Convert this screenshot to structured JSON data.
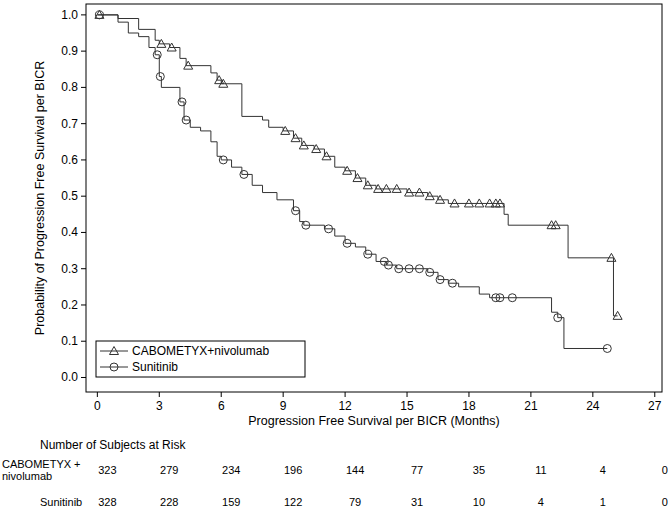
{
  "chart_data": {
    "type": "line",
    "x_label": "Progression Free Survival per BICR (Months)",
    "y_label": "Probability of Progression Free Survival per BICR",
    "xlim": [
      -0.55,
      27.35
    ],
    "ylim": [
      -0.04,
      1.03
    ],
    "xticks": [
      0,
      3,
      6,
      9,
      12,
      15,
      18,
      21,
      24,
      27
    ],
    "yticks": [
      {
        "value": 0,
        "label": "0.0"
      },
      0.1,
      0.2,
      0.3,
      0.4,
      0.5,
      0.6,
      0.7,
      0.8,
      0.9,
      {
        "value": 1,
        "label": "1.0"
      }
    ],
    "grid": false,
    "legend": "lower left",
    "series": [
      {
        "name": "CABOMETYX+nivolumab",
        "color": "#333333",
        "marker": "triangle",
        "line_style": "step",
        "x": [
          0,
          1,
          2,
          2.8,
          3,
          3.5,
          4,
          4.3,
          5.5,
          5.8,
          6,
          7,
          8,
          8.3,
          9,
          9.5,
          9.9,
          10.5,
          11,
          11.5,
          12,
          12.5,
          13,
          13.5,
          15,
          16,
          16.5,
          17,
          19.7,
          19.9,
          22.8,
          25,
          25.2
        ],
        "values": [
          1.0,
          0.99,
          0.96,
          0.93,
          0.92,
          0.91,
          0.88,
          0.86,
          0.84,
          0.82,
          0.81,
          0.72,
          0.71,
          0.69,
          0.68,
          0.66,
          0.64,
          0.63,
          0.61,
          0.58,
          0.57,
          0.55,
          0.53,
          0.52,
          0.51,
          0.5,
          0.49,
          0.48,
          0.45,
          0.42,
          0.33,
          0.17,
          0.17
        ],
        "censored": {
          "x": [
            0.1,
            3.1,
            3.6,
            4.4,
            5.9,
            6.1,
            9.1,
            9.6,
            10.0,
            10.6,
            11.1,
            12.1,
            12.6,
            13.1,
            13.6,
            14.0,
            14.5,
            15.1,
            15.6,
            16.1,
            16.6,
            17.3,
            18.0,
            18.5,
            19.0,
            19.3,
            19.5,
            22.0,
            22.2,
            24.9,
            25.2
          ],
          "values": [
            1.0,
            0.92,
            0.91,
            0.86,
            0.82,
            0.81,
            0.68,
            0.66,
            0.64,
            0.63,
            0.61,
            0.57,
            0.55,
            0.53,
            0.52,
            0.52,
            0.52,
            0.51,
            0.51,
            0.5,
            0.49,
            0.48,
            0.48,
            0.48,
            0.48,
            0.48,
            0.48,
            0.42,
            0.42,
            0.33,
            0.17
          ]
        }
      },
      {
        "name": "Sunitinib",
        "color": "#333333",
        "marker": "circle",
        "line_style": "step",
        "x": [
          0,
          1,
          1.5,
          2,
          2.5,
          2.8,
          3,
          3.1,
          4,
          4.2,
          4.5,
          5,
          5.5,
          5.8,
          6,
          6.5,
          7,
          7.5,
          8,
          8.7,
          9.5,
          9.8,
          10,
          11,
          11.5,
          12,
          12.5,
          13,
          13.5,
          14,
          14.5,
          16,
          16.5,
          17,
          17.5,
          18.5,
          19,
          22,
          22.3,
          22.6,
          24.7
        ],
        "values": [
          1.0,
          0.98,
          0.95,
          0.94,
          0.91,
          0.89,
          0.83,
          0.8,
          0.76,
          0.71,
          0.69,
          0.68,
          0.65,
          0.61,
          0.6,
          0.58,
          0.56,
          0.53,
          0.51,
          0.49,
          0.46,
          0.43,
          0.42,
          0.41,
          0.39,
          0.37,
          0.36,
          0.34,
          0.32,
          0.31,
          0.3,
          0.29,
          0.27,
          0.26,
          0.25,
          0.23,
          0.22,
          0.18,
          0.165,
          0.08,
          0.08
        ],
        "censored": {
          "x": [
            0.1,
            2.9,
            3.05,
            4.1,
            4.3,
            6.1,
            7.1,
            9.6,
            10.1,
            11.2,
            12.1,
            13.1,
            13.9,
            14.1,
            14.6,
            15.1,
            15.6,
            16.1,
            16.6,
            17.2,
            19.3,
            19.5,
            20.1,
            22.3,
            24.7
          ],
          "values": [
            1.0,
            0.89,
            0.83,
            0.76,
            0.71,
            0.6,
            0.56,
            0.46,
            0.42,
            0.41,
            0.37,
            0.34,
            0.32,
            0.31,
            0.3,
            0.3,
            0.3,
            0.29,
            0.27,
            0.26,
            0.22,
            0.22,
            0.22,
            0.165,
            0.08
          ]
        }
      }
    ],
    "at_risk": {
      "title": "Number of Subjects at Risk",
      "rows": [
        {
          "label": [
            "CABOMETYX +",
            "nivolumab"
          ],
          "values": [
            323,
            279,
            234,
            196,
            144,
            77,
            35,
            11,
            4,
            0
          ]
        },
        {
          "label": [
            "Sunitinib"
          ],
          "values": [
            328,
            228,
            159,
            122,
            79,
            31,
            10,
            4,
            1,
            0
          ]
        }
      ]
    }
  }
}
